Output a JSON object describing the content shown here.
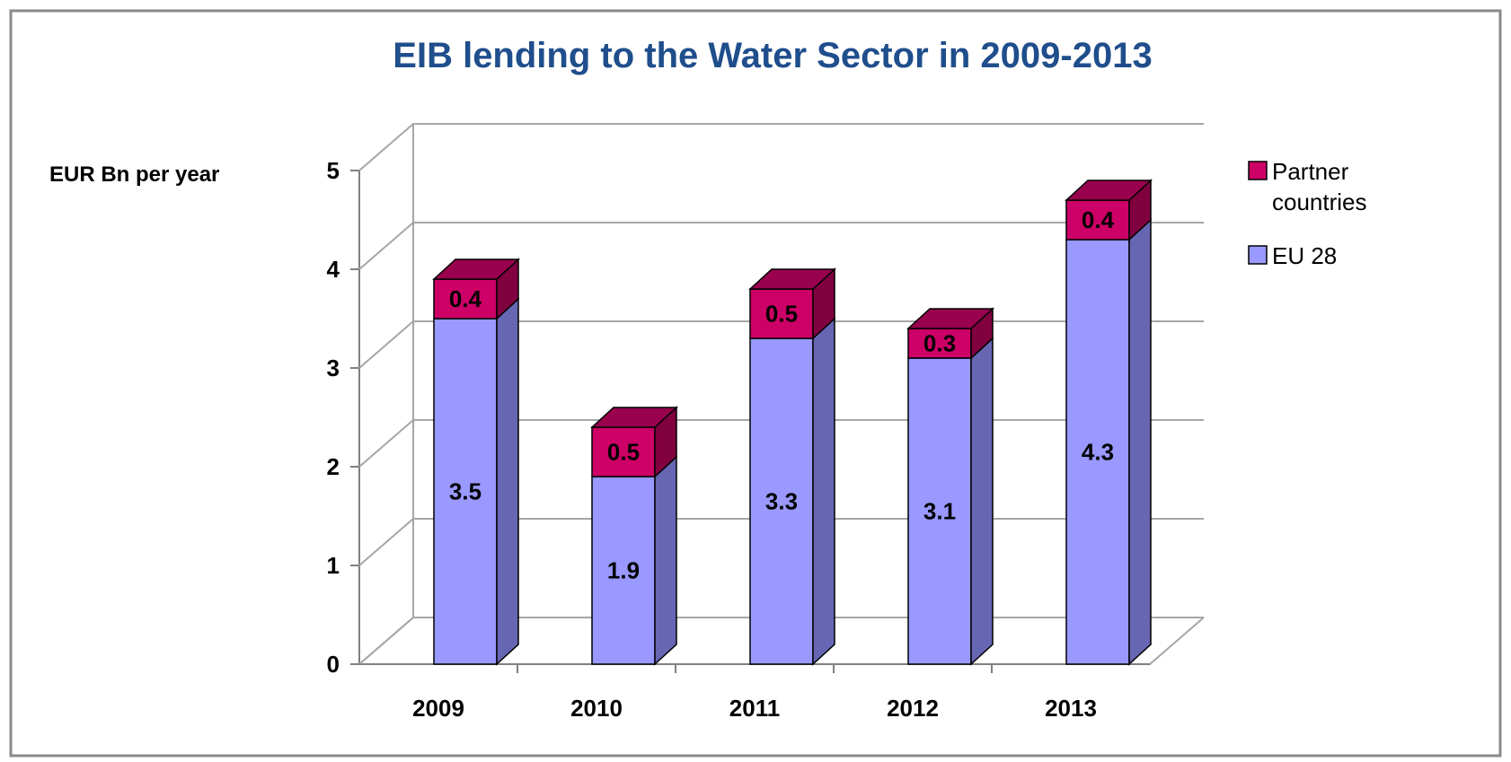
{
  "chart_data": {
    "type": "bar",
    "stacked": true,
    "three_d": true,
    "title": "EIB lending to the Water Sector in 2009-2013",
    "ylabel": "EUR  Bn per year",
    "xlabel": "",
    "categories": [
      "2009",
      "2010",
      "2011",
      "2012",
      "2013"
    ],
    "ylim": [
      0,
      5
    ],
    "yticks": [
      0,
      1,
      2,
      3,
      4,
      5
    ],
    "grid": true,
    "legend_position": "right",
    "series": [
      {
        "name": "EU 28",
        "values": [
          3.5,
          1.9,
          3.3,
          3.1,
          4.3
        ],
        "labels": [
          "3.5",
          "1.9",
          "3.3",
          "3.1",
          "4.3"
        ],
        "color": "#9999ff",
        "side_color": "#6666b3",
        "top_color": "#b8b8ff"
      },
      {
        "name": "Partner countries",
        "values": [
          0.4,
          0.5,
          0.5,
          0.3,
          0.4
        ],
        "labels": [
          "0.4",
          "0.5",
          "0.5",
          "0.3",
          "0.4"
        ],
        "color": "#cc0066",
        "side_color": "#800040",
        "top_color": "#99004d"
      }
    ],
    "legend": [
      {
        "lines": [
          "Partner",
          "countries"
        ],
        "series_index": 1
      },
      {
        "lines": [
          "EU 28"
        ],
        "series_index": 0
      }
    ]
  }
}
